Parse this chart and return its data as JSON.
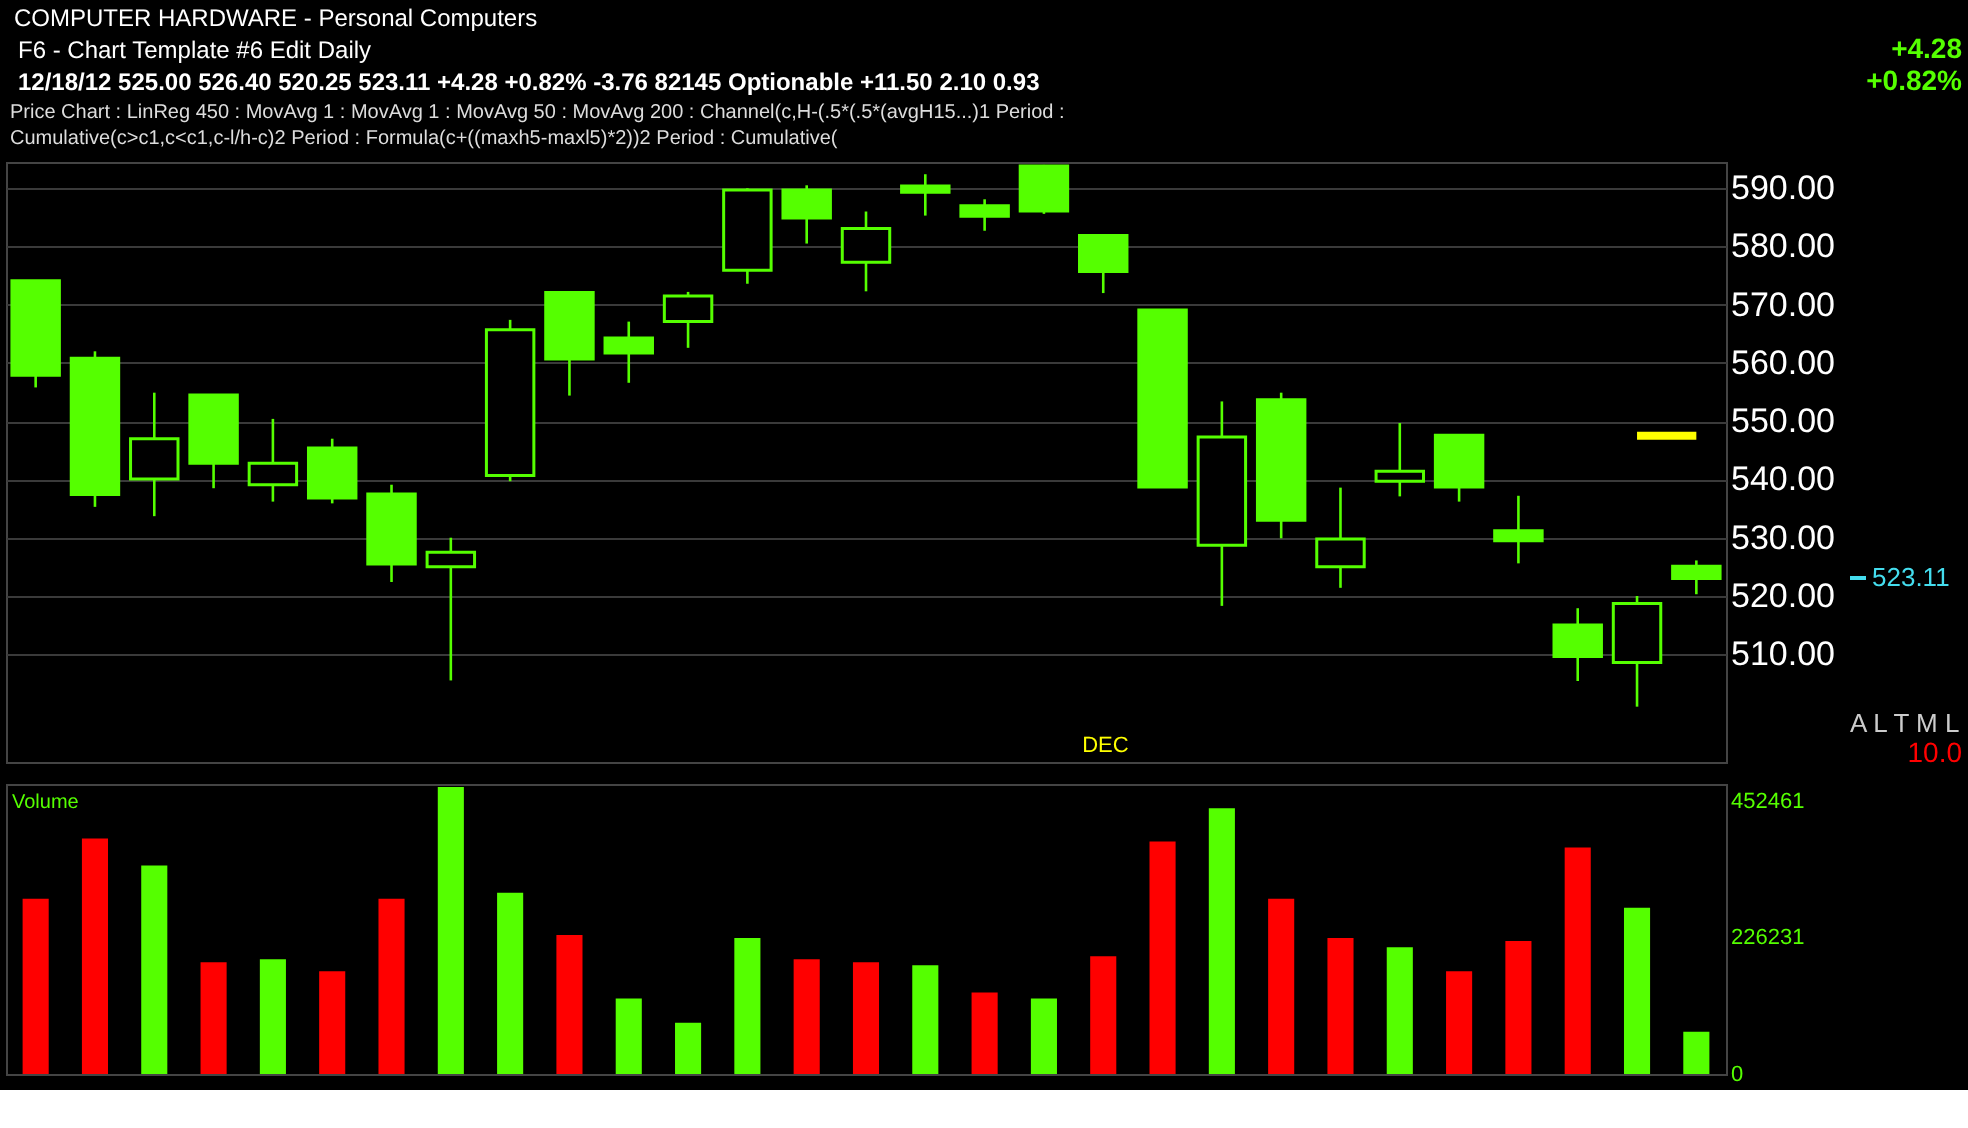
{
  "chart_data": [
    {
      "type": "candlestick",
      "title": "COMPUTER HARDWARE - Personal Computers",
      "subtitle": "12/18/12   525.00   526.40   520.25   523.11   +4.28   +0.82%   -3.76   82145   Optionable   +11.50   2.10   0.93",
      "categories": [
        null,
        null,
        null,
        null,
        null,
        null,
        null,
        null,
        null,
        null,
        null,
        null,
        null,
        null,
        null,
        null,
        null,
        null,
        null,
        null,
        null,
        null,
        null,
        null,
        null,
        null,
        null,
        null,
        null
      ],
      "ohlc": [
        [
          574.1,
          574.1,
          555.8,
          557.9
        ],
        [
          560.8,
          562.0,
          535.3,
          537.4
        ],
        [
          540.1,
          554.9,
          533.7,
          547.0
        ],
        [
          554.5,
          554.5,
          538.5,
          542.8
        ],
        [
          539.1,
          550.4,
          536.2,
          542.8
        ],
        [
          545.4,
          547.0,
          535.9,
          536.8
        ],
        [
          537.5,
          539.1,
          522.4,
          525.5
        ],
        [
          525.0,
          530.0,
          505.5,
          527.5
        ],
        [
          540.7,
          567.4,
          539.7,
          565.7
        ],
        [
          572.1,
          572.1,
          554.4,
          560.7
        ],
        [
          564.3,
          567.1,
          556.6,
          561.7
        ],
        [
          567.1,
          572.2,
          562.6,
          571.5
        ],
        [
          575.9,
          590.0,
          573.6,
          589.7
        ],
        [
          589.7,
          590.5,
          580.5,
          584.9
        ],
        [
          577.3,
          586.0,
          572.3,
          583.1
        ],
        [
          590.4,
          592.4,
          585.3,
          589.3
        ],
        [
          587.0,
          588.1,
          582.7,
          585.2
        ],
        [
          593.8,
          594.0,
          585.6,
          586.1
        ],
        [
          581.9,
          581.9,
          572.0,
          575.7
        ],
        [
          569.1,
          569.1,
          538.7,
          538.7
        ],
        [
          528.7,
          553.4,
          518.3,
          547.3
        ],
        [
          553.7,
          554.9,
          529.9,
          533.0
        ],
        [
          525.0,
          538.6,
          521.4,
          529.8
        ],
        [
          539.7,
          549.7,
          537.1,
          541.4
        ],
        [
          547.6,
          547.6,
          536.2,
          538.7
        ],
        [
          531.2,
          537.2,
          525.6,
          529.5
        ],
        [
          515.0,
          517.9,
          505.4,
          509.6
        ],
        [
          508.6,
          520.0,
          501.0,
          518.7
        ],
        [
          525.1,
          526.1,
          520.3,
          523.0
        ]
      ],
      "color": "#55ff00",
      "ylim": [
        491.5,
        594.5
      ],
      "yticks": [
        {
          "value": 510,
          "label": "510.00"
        },
        {
          "value": 520,
          "label": "520.00"
        },
        {
          "value": 530,
          "label": "530.00"
        },
        {
          "value": 540,
          "label": "540.00"
        },
        {
          "value": 550,
          "label": "550.00"
        },
        {
          "value": 560,
          "label": "560.00"
        },
        {
          "value": 570,
          "label": "570.00"
        },
        {
          "value": 580,
          "label": "580.00"
        },
        {
          "value": 590,
          "label": "590.00"
        }
      ],
      "grid": "y",
      "tick_labels": "y",
      "series": [
        {
          "type": "line",
          "color": "#ffff00",
          "values": [
            null,
            null,
            null,
            null,
            null,
            null,
            null,
            null,
            null,
            null,
            null,
            null,
            null,
            null,
            null,
            null,
            null,
            null,
            null,
            null,
            null,
            null,
            null,
            null,
            null,
            null,
            null,
            547.5,
            547.5
          ]
        }
      ],
      "annotations": [
        "F6 - Chart Template #6     Edit     Daily",
        "Price Chart : LinReg 450 : MovAvg 1 : MovAvg 1 : MovAvg 50 : MovAvg 200 : Channel(c,H-(.5*(.5*(avgH15...)1 Period : Cumulative(c>c1,c<c1,c-l/h-c)2 Period : Formula(c+((maxh5-maxl5)*2))2 Period : Cumulative(",
        "+4.28",
        "+0.82%",
        "DEC",
        "A L T M L",
        "10.0",
        "523.11"
      ]
    },
    {
      "type": "bar",
      "title": "Volume",
      "categories": [
        null,
        null,
        null,
        null,
        null,
        null,
        null,
        null,
        null,
        null,
        null,
        null,
        null,
        null,
        null,
        null,
        null,
        null,
        null,
        null,
        null,
        null,
        null,
        null,
        null,
        null,
        null,
        null,
        null
      ],
      "values": [
        290000,
        390000,
        345000,
        185000,
        190000,
        170000,
        290000,
        475000,
        300000,
        230000,
        125000,
        85000,
        225000,
        190000,
        185000,
        180000,
        135000,
        125000,
        195000,
        385000,
        440000,
        290000,
        225000,
        210000,
        170000,
        220000,
        375000,
        275000,
        70000
      ],
      "colors": [
        "#ff0000",
        "#ff0000",
        "#55ff00",
        "#ff0000",
        "#55ff00",
        "#ff0000",
        "#ff0000",
        "#55ff00",
        "#55ff00",
        "#ff0000",
        "#55ff00",
        "#55ff00",
        "#55ff00",
        "#ff0000",
        "#ff0000",
        "#55ff00",
        "#ff0000",
        "#55ff00",
        "#ff0000",
        "#ff0000",
        "#55ff00",
        "#ff0000",
        "#ff0000",
        "#55ff00",
        "#ff0000",
        "#ff0000",
        "#ff0000",
        "#55ff00",
        "#55ff00"
      ],
      "ylim": [
        0,
        480000
      ],
      "yticks": [
        0,
        226231,
        452461
      ],
      "tick_labels": "y"
    }
  ]
}
